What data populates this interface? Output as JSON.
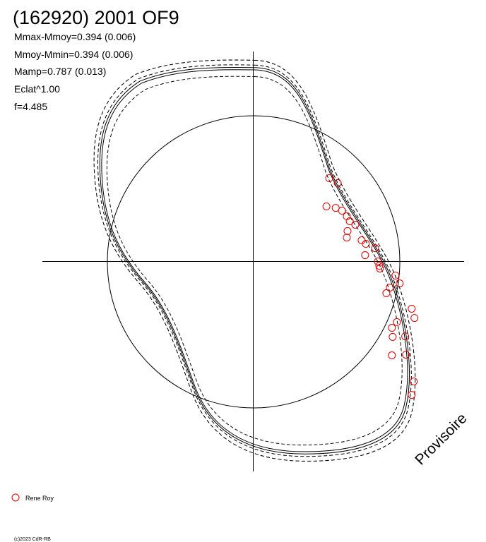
{
  "chart_data": {
    "type": "scatter",
    "title": "(162920) 2001 OF9",
    "annotations": [
      "Mmax-Mmoy=0.394 (0.006)",
      "Mmoy-Mmin=0.394 (0.006)",
      "Mamp=0.787 (0.013)",
      "Eclat^1.00",
      "f=4.485"
    ],
    "watermark": "Provisoire",
    "footer": "(c)2023 CdR-RB",
    "xlim": [
      -1.44,
      1.44
    ],
    "ylim": [
      -1.43,
      1.43
    ],
    "series": [
      {
        "name": "Rene Roy",
        "color": "#e00000",
        "x": [
          0.519,
          0.577,
          0.5,
          0.563,
          0.606,
          0.639,
          0.659,
          0.697,
          0.644,
          0.639,
          0.74,
          0.769,
          0.832,
          0.764,
          0.851,
          0.861,
          0.865,
          0.971,
          1.0,
          0.933,
          0.909,
          1.082,
          1.101,
          0.981,
          0.947,
          0.952,
          1.038,
          0.947,
          1.043,
          1.096,
          1.082
        ],
        "y": [
          0.567,
          0.534,
          0.375,
          0.365,
          0.346,
          0.308,
          0.274,
          0.25,
          0.207,
          0.163,
          0.144,
          0.12,
          0.091,
          0.043,
          0,
          -0.029,
          -0.048,
          -0.096,
          -0.149,
          -0.178,
          -0.216,
          -0.322,
          -0.385,
          -0.413,
          -0.452,
          -0.514,
          -0.51,
          -0.639,
          -0.635,
          -0.817,
          -0.909
        ]
      }
    ]
  }
}
